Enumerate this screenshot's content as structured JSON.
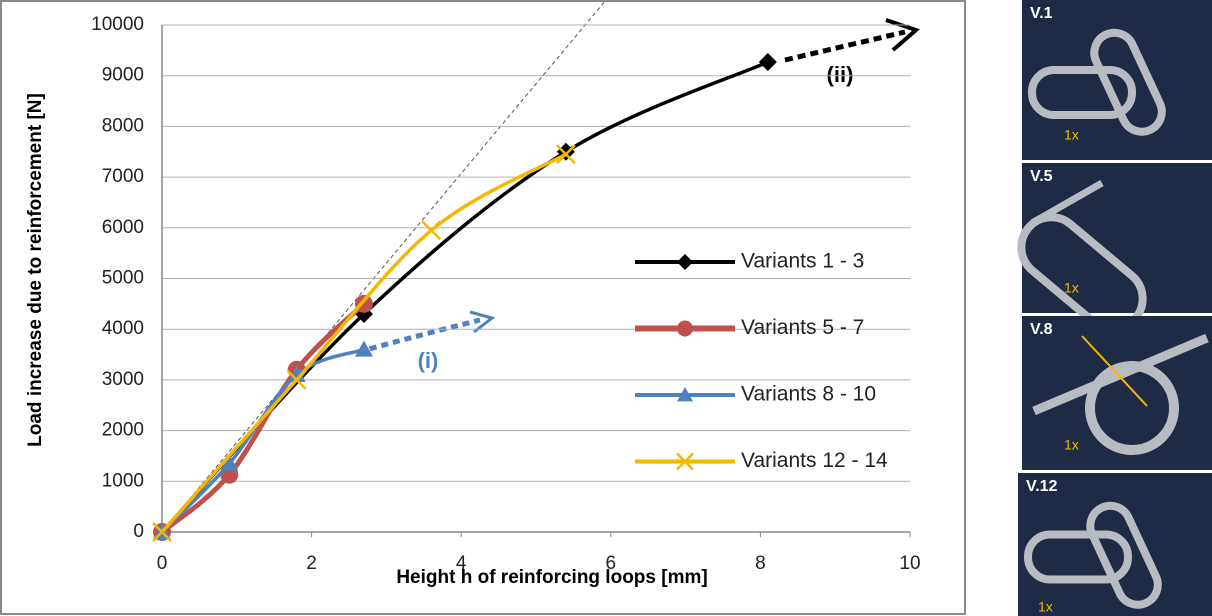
{
  "chart_data": {
    "type": "line",
    "x_label": "Height h of reinforcing loops [mm]",
    "y_label": "Load increase due to reinforcement [N]",
    "xlim": [
      0,
      10
    ],
    "xticks": [
      0,
      2,
      4,
      6,
      8,
      10
    ],
    "ylim": [
      0,
      10000
    ],
    "yticks": [
      0,
      1000,
      2000,
      3000,
      4000,
      5000,
      6000,
      7000,
      8000,
      9000,
      10000
    ],
    "grid": true,
    "legend": "right",
    "series": [
      {
        "name": "Variants 1 - 3",
        "color": "#000000",
        "marker": "diamond",
        "x": [
          0,
          2.7,
          5.4,
          8.1
        ],
        "values": [
          0,
          4300,
          7500,
          9270
        ]
      },
      {
        "name": "Variants 5 - 7",
        "color": "#c0504d",
        "marker": "circle",
        "x": [
          0,
          0.9,
          1.8,
          2.7
        ],
        "values": [
          0,
          1130,
          3200,
          4500
        ]
      },
      {
        "name": "Variants 8 - 10",
        "color": "#4f81bd",
        "marker": "triangle",
        "x": [
          0,
          0.9,
          1.8,
          2.7
        ],
        "values": [
          0,
          1350,
          3100,
          3600
        ]
      },
      {
        "name": "Variants 12 - 14",
        "color": "#f5b800",
        "marker": "x",
        "x": [
          0,
          1.8,
          3.6,
          5.4
        ],
        "values": [
          0,
          3000,
          5950,
          7450
        ]
      }
    ],
    "annotations": [
      "(i)",
      "(ii)"
    ]
  },
  "panels": [
    {
      "label": "V.1",
      "count": "1x"
    },
    {
      "label": "V.5",
      "count": "1x"
    },
    {
      "label": "V.8",
      "count": "1x"
    },
    {
      "label": "V.12",
      "count": "1x"
    }
  ]
}
